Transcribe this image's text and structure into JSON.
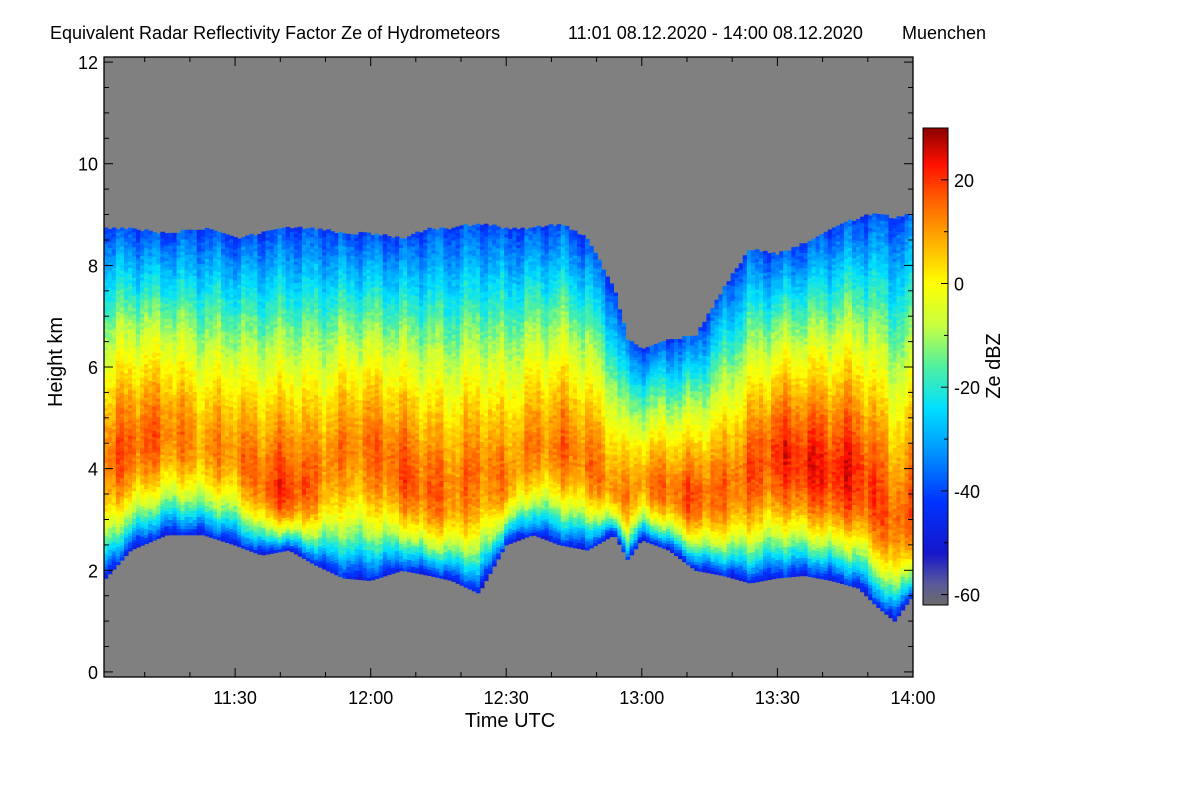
{
  "chart_data": {
    "type": "heatmap",
    "title": "Equivalent Radar Reflectivity Factor Ze of Hydrometeors",
    "time_range": "11:01 08.12.2020 - 14:00 08.12.2020",
    "location": "Muenchen",
    "xlabel": "Time UTC",
    "ylabel": "Height km",
    "xlim_minutes": [
      661,
      840
    ],
    "x_ticks": [
      {
        "label": "11:30",
        "minutes": 690
      },
      {
        "label": "12:00",
        "minutes": 720
      },
      {
        "label": "12:30",
        "minutes": 750
      },
      {
        "label": "13:00",
        "minutes": 780
      },
      {
        "label": "13:30",
        "minutes": 810
      },
      {
        "label": "14:00",
        "minutes": 840
      }
    ],
    "ylim": [
      -0.1,
      12.1
    ],
    "y_ticks": [
      {
        "label": "0",
        "value": 0
      },
      {
        "label": "2",
        "value": 2
      },
      {
        "label": "4",
        "value": 4
      },
      {
        "label": "6",
        "value": 6
      },
      {
        "label": "8",
        "value": 8
      },
      {
        "label": "10",
        "value": 10
      },
      {
        "label": "12",
        "value": 12
      }
    ],
    "background_color": "#808080",
    "colorbar": {
      "label": "Ze dBZ",
      "range": [
        -62,
        30
      ],
      "ticks": [
        {
          "label": "20",
          "value": 20
        },
        {
          "label": "0",
          "value": 0
        },
        {
          "label": "-20",
          "value": -20
        },
        {
          "label": "-40",
          "value": -40
        },
        {
          "label": "-60",
          "value": -60
        }
      ],
      "stops": [
        {
          "value": -62,
          "color": "#6b6b6b"
        },
        {
          "value": -58,
          "color": "#5a5a9a"
        },
        {
          "value": -52,
          "color": "#1616cc"
        },
        {
          "value": -42,
          "color": "#0033ff"
        },
        {
          "value": -32,
          "color": "#0099ff"
        },
        {
          "value": -24,
          "color": "#00e0ff"
        },
        {
          "value": -16,
          "color": "#50f0a0"
        },
        {
          "value": -8,
          "color": "#c8ff40"
        },
        {
          "value": 0,
          "color": "#ffff00"
        },
        {
          "value": 8,
          "color": "#ffb000"
        },
        {
          "value": 16,
          "color": "#ff6000"
        },
        {
          "value": 23,
          "color": "#ff1000"
        },
        {
          "value": 30,
          "color": "#8b0000"
        }
      ]
    },
    "cloud_structure": {
      "time_minutes": [
        661,
        667,
        675,
        683,
        690,
        696,
        702,
        708,
        714,
        720,
        727,
        733,
        738,
        744,
        750,
        756,
        762,
        768,
        774,
        777,
        780,
        786,
        792,
        798,
        804,
        810,
        816,
        822,
        828,
        832,
        836,
        840
      ],
      "cloud_base_km": [
        1.8,
        2.4,
        2.7,
        2.7,
        2.5,
        2.3,
        2.4,
        2.1,
        1.85,
        1.8,
        2.0,
        1.9,
        1.8,
        1.55,
        2.5,
        2.7,
        2.5,
        2.4,
        2.7,
        2.2,
        2.6,
        2.4,
        2.0,
        1.9,
        1.75,
        1.85,
        1.9,
        1.8,
        1.65,
        1.3,
        1.0,
        1.5
      ],
      "cloud_top_km": [
        8.7,
        8.7,
        8.6,
        8.7,
        8.5,
        8.6,
        8.7,
        8.7,
        8.6,
        8.6,
        8.5,
        8.7,
        8.7,
        8.8,
        8.7,
        8.7,
        8.8,
        8.5,
        7.5,
        6.5,
        6.3,
        6.5,
        6.6,
        7.5,
        8.3,
        8.2,
        8.4,
        8.7,
        8.9,
        9.0,
        8.9,
        9.0
      ],
      "peak_height_km": [
        4.2,
        4.5,
        4.8,
        4.5,
        4.4,
        3.8,
        3.5,
        3.8,
        4.5,
        4.5,
        4.0,
        3.6,
        3.6,
        4.0,
        3.8,
        4.5,
        4.5,
        4.2,
        3.6,
        3.5,
        3.8,
        3.6,
        3.5,
        3.6,
        4.0,
        4.4,
        4.2,
        4.0,
        4.0,
        3.5,
        3.0,
        3.2
      ],
      "peak_ze_dbz": [
        14,
        17,
        14,
        10,
        12,
        16,
        20,
        14,
        12,
        14,
        17,
        16,
        13,
        14,
        12,
        12,
        14,
        14,
        12,
        10,
        12,
        15,
        17,
        14,
        16,
        20,
        22,
        22,
        22,
        18,
        16,
        14
      ]
    }
  }
}
